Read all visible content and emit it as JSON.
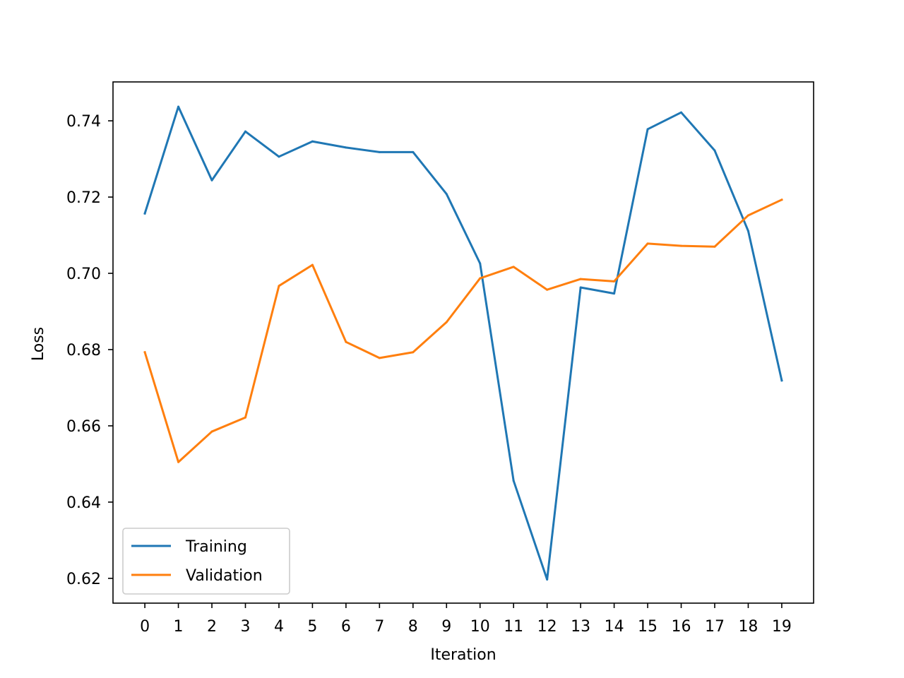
{
  "chart_data": {
    "type": "line",
    "title": "",
    "xlabel": "Iteration",
    "ylabel": "Loss",
    "x": [
      0,
      1,
      2,
      3,
      4,
      5,
      6,
      7,
      8,
      9,
      10,
      11,
      12,
      13,
      14,
      15,
      16,
      17,
      18,
      19
    ],
    "x_ticks": [
      "0",
      "1",
      "2",
      "3",
      "4",
      "5",
      "6",
      "7",
      "8",
      "9",
      "10",
      "11",
      "12",
      "13",
      "14",
      "15",
      "16",
      "17",
      "18",
      "19"
    ],
    "y_ticks": [
      0.62,
      0.64,
      0.66,
      0.68,
      0.7,
      0.72,
      0.74
    ],
    "y_tick_labels": [
      "0.62",
      "0.64",
      "0.66",
      "0.68",
      "0.70",
      "0.72",
      "0.74"
    ],
    "xlim": [
      -0.95,
      19.95
    ],
    "ylim": [
      0.6135,
      0.7502
    ],
    "grid": false,
    "legend_position": "lower-left",
    "series": [
      {
        "name": "Training",
        "color": "#1f77b4",
        "values": [
          0.7157,
          0.7437,
          0.7244,
          0.7372,
          0.7306,
          0.7346,
          0.733,
          0.7318,
          0.7318,
          0.7208,
          0.7026,
          0.6456,
          0.6197,
          0.6963,
          0.6947,
          0.7378,
          0.7422,
          0.7322,
          0.7111,
          0.6719
        ]
      },
      {
        "name": "Validation",
        "color": "#ff7f0e",
        "values": [
          0.6793,
          0.6505,
          0.6585,
          0.6622,
          0.6967,
          0.7022,
          0.682,
          0.6778,
          0.6793,
          0.6872,
          0.6987,
          0.7017,
          0.6957,
          0.6985,
          0.6979,
          0.7078,
          0.7072,
          0.707,
          0.7152,
          0.7193
        ]
      }
    ]
  }
}
